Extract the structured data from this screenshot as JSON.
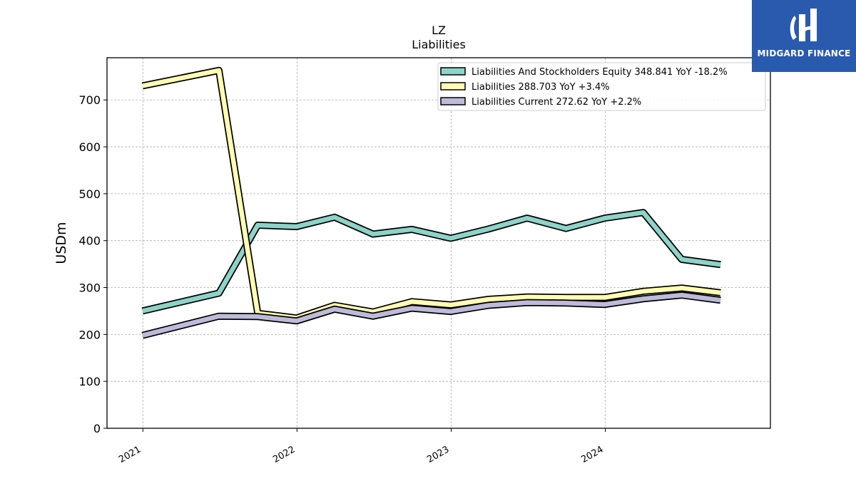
{
  "logo": {
    "text": "MIDGARD FINANCE",
    "bg_color": "#2a5aae"
  },
  "chart_data": {
    "type": "line",
    "title": "LZ",
    "subtitle": "Liabilities",
    "ylabel": "USDm",
    "xlabel": "",
    "ylim": [
      0,
      790
    ],
    "yticks": [
      0,
      100,
      200,
      300,
      400,
      500,
      600,
      700
    ],
    "xlim": [
      "2020-10-08",
      "2025-01-26"
    ],
    "xticks": [
      {
        "label": "2021",
        "date": "2021-01-01"
      },
      {
        "label": "2022",
        "date": "2022-01-01"
      },
      {
        "label": "2023",
        "date": "2023-01-01"
      },
      {
        "label": "2024",
        "date": "2024-01-01"
      }
    ],
    "grid": true,
    "legend_position": "top-right",
    "x": [
      "2020-12-31",
      "2021-06-30",
      "2021-09-30",
      "2021-12-31",
      "2022-03-31",
      "2022-06-30",
      "2022-09-30",
      "2022-12-31",
      "2023-03-31",
      "2023-06-30",
      "2023-09-30",
      "2023-12-31",
      "2024-03-31",
      "2024-06-30",
      "2024-09-30"
    ],
    "series": [
      {
        "name": "Liabilities And Stockholders Equity",
        "legend": "Liabilities And Stockholders Equity  348.841 YoY -18.2%",
        "color": "#8dd3c7",
        "values": [
          250,
          288,
          433,
          430,
          450,
          414,
          424,
          405,
          425,
          448,
          426,
          448,
          460,
          360,
          349
        ]
      },
      {
        "name": "Liabilities",
        "legend": "Liabilities  288.703 YoY +3.4%",
        "color": "#ffffb3",
        "values": [
          730,
          763,
          245,
          235,
          262,
          248,
          270,
          263,
          275,
          280,
          279,
          279,
          292,
          299,
          289
        ]
      },
      {
        "name": "Liabilities Current",
        "legend": "Liabilities Current  272.62 YoY +2.2%",
        "color": "#bebada",
        "values": [
          198,
          239,
          238,
          229,
          254,
          239,
          256,
          249,
          262,
          268,
          267,
          264,
          276,
          284,
          273
        ]
      }
    ]
  }
}
